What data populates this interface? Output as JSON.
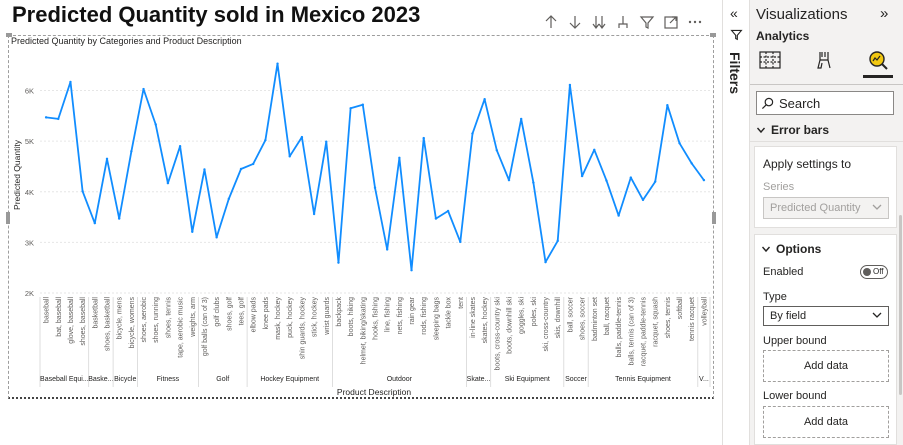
{
  "page": {
    "title": "Predicted Quantity sold in Mexico 2023"
  },
  "visual_header": {
    "icons": [
      "arrow-up-icon",
      "arrow-down-icon",
      "double-arrow-down-icon",
      "expand-hierarchy-icon",
      "filter-icon",
      "focus-mode-icon",
      "more-options-icon"
    ]
  },
  "filters": {
    "label": "Filters",
    "collapse_icon": "double-chevron-left-icon"
  },
  "visualizations": {
    "title": "Visualizations",
    "expand_icon": "double-chevron-right-icon",
    "section": "Analytics",
    "tabs": [
      "table-visual-icon",
      "format-brush-icon",
      "analytics-magnifier-icon"
    ],
    "search_placeholder": "Search",
    "error_bars": {
      "title": "Error bars",
      "apply_title": "Apply settings to",
      "series_label": "Series",
      "series_value": "Predicted Quantity",
      "options_title": "Options",
      "enabled_label": "Enabled",
      "enabled_state": "Off",
      "type_label": "Type",
      "type_value": "By field",
      "upper_label": "Upper bound",
      "upper_button": "Add data",
      "lower_label": "Lower bound",
      "lower_button": "Add data"
    }
  },
  "chart_data": {
    "type": "line",
    "title": "Predicted Quantity by Categories and Product Description",
    "xlabel": "Product Description",
    "ylabel": "Predicted Quantity",
    "ylim": [
      2000,
      6900
    ],
    "yticks": [
      2000,
      3000,
      4000,
      5000,
      6000
    ],
    "ytick_labels": [
      "2K",
      "3K",
      "4K",
      "5K",
      "6K"
    ],
    "grid": true,
    "color": "#118dff",
    "categories": [
      "baseball",
      "bat, baseball",
      "glove, baseball",
      "shoes, baseball",
      "basketball",
      "shoes, basketball",
      "bicycle, mens",
      "bicycle, womens",
      "shoes, aerobic",
      "shoes, running",
      "shoes, tennis",
      "tape, aerobic music",
      "weights, arm",
      "golf balls (can of 3)",
      "golf clubs",
      "shoes, golf",
      "tees, golf",
      "elbow pads",
      "knee pads",
      "mask, hockey",
      "puck, hockey",
      "shin guards, hockey",
      "stick, hockey",
      "wrist guards",
      "backpack",
      "boots, hiking",
      "helmet, biking/skating",
      "hooks, fishing",
      "line, fishing",
      "nets, fishing",
      "rain gear",
      "rods, fishing",
      "sleeping bags",
      "tackle box",
      "tent",
      "in-line skates",
      "skates, hockey",
      "boots, cross-country ski",
      "boots, downhill ski",
      "goggles, ski",
      "poles, ski",
      "ski, cross-country",
      "skis, downhill",
      "ball, soccer",
      "shoes, soccer",
      "badminton set",
      "ball, racquet",
      "balls, paddle-tennis",
      "balls, tennis (can of 3)",
      "racquet, paddle-tennis",
      "racquet, squash",
      "shoes, tennis",
      "softball",
      "tennis racquet",
      "volleyball"
    ],
    "values": [
      5470,
      5440,
      6170,
      4010,
      3380,
      4650,
      3470,
      4800,
      6030,
      5330,
      4170,
      4900,
      3210,
      4440,
      3100,
      3860,
      4450,
      4550,
      5020,
      6530,
      4700,
      5080,
      3560,
      4990,
      2600,
      5650,
      5720,
      4080,
      2860,
      4670,
      2450,
      5060,
      3470,
      3620,
      3010,
      5150,
      5830,
      4820,
      4230,
      5440,
      4180,
      2610,
      3030,
      6110,
      4310,
      4830,
      4220,
      3530,
      4280,
      3840,
      4200,
      5710,
      4960,
      4560,
      4230
    ],
    "groups": [
      {
        "name": "Baseball Equi...",
        "count": 4
      },
      {
        "name": "Baske...",
        "count": 2
      },
      {
        "name": "Bicycle",
        "count": 2
      },
      {
        "name": "Fitness",
        "count": 5
      },
      {
        "name": "Golf",
        "count": 4
      },
      {
        "name": "Hockey Equipment",
        "count": 7
      },
      {
        "name": "Outdoor",
        "count": 11
      },
      {
        "name": "Skate...",
        "count": 2
      },
      {
        "name": "Ski Equipment",
        "count": 6
      },
      {
        "name": "Soccer",
        "count": 2
      },
      {
        "name": "Tennis Equipment",
        "count": 9
      },
      {
        "name": "V...",
        "count": 1
      }
    ]
  }
}
